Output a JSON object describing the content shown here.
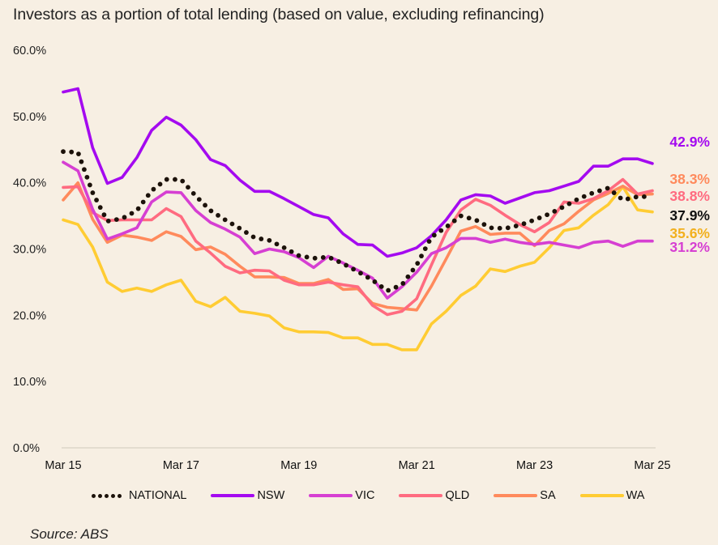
{
  "chart_data": {
    "type": "line",
    "title": "Investors as a portion of total lending (based on value, excluding refinancing)",
    "xlabel": "",
    "ylabel": "",
    "ylim": [
      0,
      60
    ],
    "yticks": [
      "0.0%",
      "10.0%",
      "20.0%",
      "30.0%",
      "40.0%",
      "50.0%",
      "60.0%"
    ],
    "ytick_values": [
      0,
      10,
      20,
      30,
      40,
      50,
      60
    ],
    "xticks": [
      "Mar 15",
      "Mar 17",
      "Mar 19",
      "Mar 21",
      "Mar 23",
      "Mar 25"
    ],
    "xtick_index": [
      0,
      8,
      16,
      24,
      32,
      40
    ],
    "x_frequency": "quarterly",
    "x_start": "Mar 15",
    "x_end": "Mar 25",
    "grid": false,
    "legend_position": "bottom",
    "series": [
      {
        "name": "NATIONAL",
        "color": "#1c120a",
        "style": "dotted",
        "end_label": "37.9%",
        "values": [
          44.7,
          44.6,
          38.5,
          34.2,
          34.6,
          35.8,
          38.8,
          40.5,
          40.5,
          38.0,
          35.8,
          34.4,
          33.1,
          31.7,
          31.3,
          30.2,
          29.0,
          28.6,
          28.8,
          27.8,
          26.6,
          25.3,
          23.7,
          24.6,
          27.6,
          31.8,
          33.3,
          35.0,
          34.4,
          33.2,
          33.1,
          33.6,
          34.4,
          35.3,
          36.4,
          37.6,
          38.5,
          39.2,
          37.4,
          37.9,
          37.9
        ]
      },
      {
        "name": "NSW",
        "color": "#a40af0",
        "style": "solid",
        "end_label": "42.9%",
        "values": [
          53.7,
          54.2,
          45.3,
          39.9,
          40.8,
          43.8,
          47.9,
          49.9,
          48.7,
          46.5,
          43.5,
          42.6,
          40.4,
          38.7,
          38.7,
          37.6,
          36.4,
          35.2,
          34.7,
          32.3,
          30.7,
          30.6,
          28.9,
          29.4,
          30.2,
          32.0,
          34.4,
          37.4,
          38.2,
          38.0,
          36.9,
          37.7,
          38.5,
          38.8,
          39.5,
          40.2,
          42.5,
          42.5,
          43.6,
          43.6,
          42.9
        ]
      },
      {
        "name": "VIC",
        "color": "#d63fd2",
        "style": "solid",
        "end_label": "31.2%",
        "values": [
          43.1,
          41.8,
          36.0,
          31.5,
          32.3,
          33.2,
          37.1,
          38.6,
          38.5,
          35.8,
          34.0,
          33.0,
          31.8,
          29.3,
          30.0,
          29.6,
          28.7,
          27.2,
          28.9,
          27.9,
          26.8,
          25.6,
          22.6,
          24.3,
          26.5,
          29.3,
          30.2,
          31.6,
          31.6,
          31.0,
          31.5,
          31.0,
          30.7,
          31.0,
          30.6,
          30.2,
          31.0,
          31.2,
          30.4,
          31.2,
          31.2
        ]
      },
      {
        "name": "QLD",
        "color": "#ff6b80",
        "style": "solid",
        "end_label": "38.8%",
        "values": [
          39.3,
          39.4,
          35.5,
          34.3,
          34.4,
          34.4,
          34.4,
          36.1,
          34.9,
          31.2,
          29.4,
          27.4,
          26.4,
          26.8,
          26.7,
          25.3,
          24.6,
          24.6,
          25.0,
          24.6,
          24.3,
          21.5,
          20.1,
          20.6,
          22.5,
          27.6,
          32.5,
          35.9,
          37.5,
          36.6,
          35.1,
          33.7,
          32.6,
          34.0,
          37.1,
          36.9,
          37.6,
          38.8,
          40.5,
          38.3,
          38.8
        ]
      },
      {
        "name": "SA",
        "color": "#ff8a5c",
        "style": "solid",
        "end_label": "38.3%",
        "values": [
          37.4,
          40.0,
          34.5,
          31.0,
          32.1,
          31.8,
          31.3,
          32.6,
          31.9,
          29.9,
          30.3,
          29.2,
          27.4,
          25.8,
          25.8,
          25.7,
          24.8,
          24.8,
          25.4,
          23.9,
          24.0,
          21.8,
          21.2,
          21.0,
          20.8,
          24.4,
          28.5,
          32.7,
          33.4,
          32.2,
          32.4,
          32.4,
          30.5,
          32.8,
          33.8,
          35.7,
          37.4,
          38.4,
          39.5,
          38.2,
          38.3
        ]
      },
      {
        "name": "WA",
        "color": "#ffcc33",
        "style": "solid",
        "end_label": "35.6%",
        "values": [
          34.4,
          33.7,
          30.3,
          25.0,
          23.6,
          24.1,
          23.6,
          24.6,
          25.3,
          22.1,
          21.3,
          22.7,
          20.6,
          20.3,
          19.9,
          18.1,
          17.5,
          17.5,
          17.4,
          16.6,
          16.6,
          15.6,
          15.6,
          14.8,
          14.8,
          18.7,
          20.6,
          23.0,
          24.4,
          27.0,
          26.6,
          27.4,
          28.0,
          30.2,
          32.8,
          33.2,
          35.1,
          36.7,
          39.4,
          35.9,
          35.6
        ]
      }
    ],
    "end_labels": [
      {
        "series": "NSW",
        "text": "42.9%",
        "color": "#a40af0"
      },
      {
        "series": "SA",
        "text": "38.3%",
        "color": "#ff8a5c"
      },
      {
        "series": "QLD",
        "text": "38.8%",
        "color": "#ff6b80"
      },
      {
        "series": "NATIONAL",
        "text": "37.9%",
        "color": "#111111"
      },
      {
        "series": "WA",
        "text": "35.6%",
        "color": "#f2b01e"
      },
      {
        "series": "VIC",
        "text": "31.2%",
        "color": "#d63fd2"
      }
    ]
  },
  "legend": [
    {
      "label": "NATIONAL",
      "color": "#1c120a",
      "style": "dotted"
    },
    {
      "label": "NSW",
      "color": "#a40af0",
      "style": "solid"
    },
    {
      "label": "VIC",
      "color": "#d63fd2",
      "style": "solid"
    },
    {
      "label": "QLD",
      "color": "#ff6b80",
      "style": "solid"
    },
    {
      "label": "SA",
      "color": "#ff8a5c",
      "style": "solid"
    },
    {
      "label": "WA",
      "color": "#ffcc33",
      "style": "solid"
    }
  ],
  "source": "Source: ABS"
}
